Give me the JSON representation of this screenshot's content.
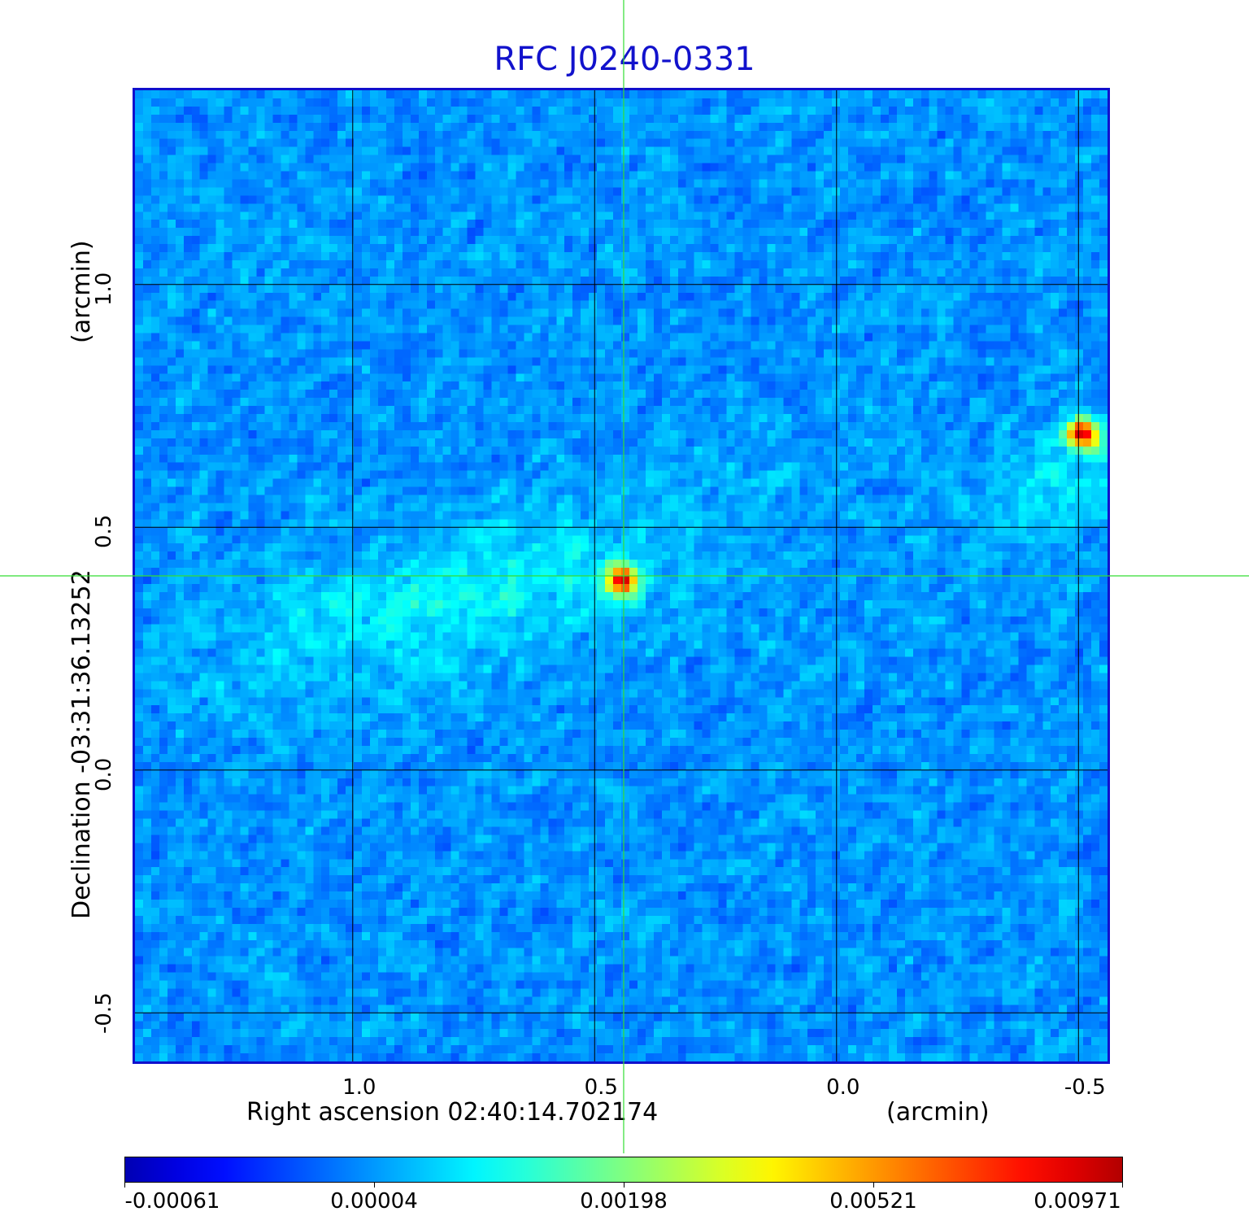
{
  "title": "RFC J0240-0331",
  "xaxis": {
    "label": "Right ascension  02:40:14.702174",
    "unit": "(arcmin)",
    "ticks": [
      "1.0",
      "0.5",
      "0.0",
      "-0.5"
    ],
    "range_arcmin": [
      1.45,
      -0.56
    ]
  },
  "yaxis": {
    "label": "Declination  -03:31:36.13252",
    "unit": "(arcmin)",
    "ticks": [
      "1.0",
      "0.5",
      "0.0",
      "-0.5"
    ],
    "range_arcmin": [
      -0.6,
      1.4
    ]
  },
  "grid": true,
  "crosshair_center_arcmin": [
    0.44,
    0.4
  ],
  "sources_arcmin": [
    {
      "ra": 0.45,
      "dec": 0.4,
      "peak": 0.00971
    },
    {
      "ra": -0.5,
      "dec": 0.7,
      "peak": 0.00971
    }
  ],
  "colorbar": {
    "colormap": "jet",
    "tick_labels": [
      "-0.00061",
      "0.00004",
      "0.00198",
      "0.00521",
      "0.00971"
    ]
  },
  "colors": {
    "title": "#1212cc",
    "frame": "#1010cc",
    "crosshair": "#33dd33",
    "grid": "#000000"
  }
}
